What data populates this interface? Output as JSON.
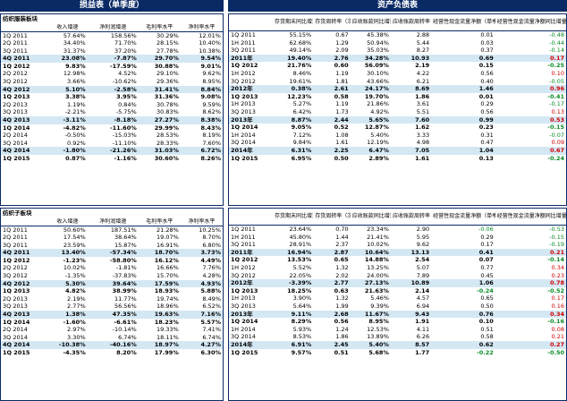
{
  "left_title": "损益表（单季度）",
  "right_title": "资产负债表",
  "q_textile": {
    "section": "纺织服装板块",
    "headers": [
      "",
      "收入增速",
      "净利润增速",
      "毛利率水平",
      "净利率水平"
    ],
    "rows": [
      [
        "1Q 2011",
        "57.64%",
        "158.56%",
        "30.29%",
        "12.01%"
      ],
      [
        "2Q 2011",
        "34.40%",
        "71.70%",
        "28.15%",
        "10.40%"
      ],
      [
        "3Q 2011",
        "31.37%",
        "37.20%",
        "27.78%",
        "10.38%"
      ],
      [
        "4Q 2011",
        "23.08%",
        "-7.87%",
        "29.70%",
        "9.54%"
      ],
      [
        "1Q 2012",
        "9.83%",
        "-17.59%",
        "30.88%",
        "9.01%"
      ],
      [
        "2Q 2012",
        "12.98%",
        "4.52%",
        "29.10%",
        "9.62%"
      ],
      [
        "3Q 2012",
        "3.66%",
        "-10.62%",
        "29.36%",
        "8.95%"
      ],
      [
        "4Q 2012",
        "5.10%",
        "-2.58%",
        "31.41%",
        "8.84%"
      ],
      [
        "1Q 2013",
        "3.38%",
        "3.95%",
        "31.36%",
        "9.08%"
      ],
      [
        "2Q 2013",
        "1.19%",
        "0.84%",
        "30.78%",
        "9.59%"
      ],
      [
        "3Q 2013",
        "-2.21%",
        "-5.75%",
        "30.83%",
        "8.62%"
      ],
      [
        "4Q 2013",
        "-3.11%",
        "-8.18%",
        "27.27%",
        "8.38%"
      ],
      [
        "1Q 2014",
        "-4.82%",
        "-11.60%",
        "29.99%",
        "8.43%"
      ],
      [
        "2Q 2014",
        "-0.50%",
        "-15.03%",
        "28.53%",
        "8.19%"
      ],
      [
        "3Q 2014",
        "0.92%",
        "-11.10%",
        "28.33%",
        "7.60%"
      ],
      [
        "4Q 2014",
        "-1.80%",
        "-21.26%",
        "31.03%",
        "6.72%"
      ],
      [
        "1Q 2015",
        "0.87%",
        "-1.16%",
        "30.60%",
        "8.26%"
      ]
    ]
  },
  "q_apparel": {
    "section": "纺织子板块",
    "headers": [
      "",
      "收入增速",
      "净利润增速",
      "毛利率水平",
      "净利率水平"
    ],
    "rows": [
      [
        "1Q 2011",
        "50.60%",
        "187.51%",
        "21.28%",
        "10.25%"
      ],
      [
        "2Q 2011",
        "17.54%",
        "38.64%",
        "19.07%",
        "8.70%"
      ],
      [
        "3Q 2011",
        "23.59%",
        "15.87%",
        "16.91%",
        "6.80%"
      ],
      [
        "4Q 2011",
        "13.40%",
        "-57.34%",
        "18.70%",
        "3.73%"
      ],
      [
        "1Q 2012",
        "-1.23%",
        "-58.80%",
        "16.12%",
        "4.49%"
      ],
      [
        "2Q 2012",
        "10.02%",
        "-1.81%",
        "16.66%",
        "7.76%"
      ],
      [
        "3Q 2012",
        "-1.35%",
        "-37.83%",
        "15.70%",
        "4.28%"
      ],
      [
        "4Q 2012",
        "5.30%",
        "39.64%",
        "17.59%",
        "4.93%"
      ],
      [
        "1Q 2013",
        "4.82%",
        "38.99%",
        "18.93%",
        "5.88%"
      ],
      [
        "2Q 2013",
        "2.19%",
        "11.77%",
        "19.74%",
        "8.49%"
      ],
      [
        "3Q 2013",
        "2.77%",
        "56.56%",
        "18.96%",
        "6.52%"
      ],
      [
        "4Q 2013",
        "1.38%",
        "47.35%",
        "19.63%",
        "7.16%"
      ],
      [
        "1Q 2014",
        "-1.60%",
        "-6.61%",
        "18.23%",
        "5.57%"
      ],
      [
        "2Q 2014",
        "2.97%",
        "-10.14%",
        "19.33%",
        "7.41%"
      ],
      [
        "3Q 2014",
        "3.30%",
        "6.74%",
        "18.11%",
        "6.74%"
      ],
      [
        "4Q 2014",
        "-10.38%",
        "-40.16%",
        "18.97%",
        "4.27%"
      ],
      [
        "1Q 2015",
        "-4.35%",
        "8.20%",
        "17.99%",
        "6.30%"
      ]
    ]
  },
  "bs_top": {
    "headers": [
      "",
      "存货期末同比增速",
      "存货周转率（次）",
      "应收账款同比增速",
      "应收账款周转率（次）",
      "经营性现金流量净额（单季，亿元）",
      "经营性现金流量净额同比增量（单季，亿元）"
    ],
    "rows": [
      [
        "1Q 2011",
        "55.15%",
        "0.67",
        "45.38%",
        "2.88",
        "0.01",
        "-0.48"
      ],
      [
        "1H 2011",
        "62.68%",
        "1.29",
        "50.94%",
        "5.44",
        "0.03",
        "-0.44"
      ],
      [
        "3Q 2011",
        "49.14%",
        "2.09",
        "35.03%",
        "8.27",
        "0.37",
        "-0.14"
      ],
      [
        "2011年",
        "19.40%",
        "2.76",
        "34.28%",
        "10.93",
        "0.69",
        "0.17"
      ],
      [
        "1Q 2012",
        "21.76%",
        "0.60",
        "56.09%",
        "2.19",
        "0.15",
        "-0.25"
      ],
      [
        "1H 2012",
        "8.46%",
        "1.19",
        "30.10%",
        "4.22",
        "0.56",
        "0.10"
      ],
      [
        "3Q 2012",
        "19.61%",
        "1.81",
        "43.66%",
        "6.21",
        "0.40",
        "-0.05"
      ],
      [
        "2012年",
        "0.38%",
        "2.61",
        "24.17%",
        "8.69",
        "1.46",
        "0.96"
      ],
      [
        "1Q 2013",
        "12.23%",
        "0.58",
        "19.70%",
        "1.86",
        "0.01",
        "-0.41"
      ],
      [
        "1H 2013",
        "5.27%",
        "1.19",
        "21.86%",
        "3.61",
        "0.29",
        "-0.17"
      ],
      [
        "3Q 2013",
        "6.42%",
        "1.73",
        "4.92%",
        "5.51",
        "0.56",
        "0.13"
      ],
      [
        "2013年",
        "8.87%",
        "2.44",
        "5.65%",
        "7.60",
        "0.99",
        "0.53"
      ],
      [
        "1Q 2014",
        "9.05%",
        "0.52",
        "12.87%",
        "1.62",
        "0.23",
        "-0.15"
      ],
      [
        "1H 2014",
        "7.12%",
        "1.08",
        "5.40%",
        "3.33",
        "0.31",
        "-0.07"
      ],
      [
        "3Q 2014",
        "9.84%",
        "1.61",
        "12.19%",
        "4.98",
        "0.47",
        "0.09"
      ],
      [
        "2014年",
        "6.31%",
        "2.25",
        "6.47%",
        "7.05",
        "1.04",
        "0.67"
      ],
      [
        "1Q 2015",
        "6.95%",
        "0.50",
        "2.89%",
        "1.61",
        "0.13",
        "-0.24"
      ]
    ]
  },
  "bs_bottom": {
    "headers": [
      "",
      "存货期末同比增速",
      "存货周转率（次）",
      "应收账款同比增速",
      "应收账款周转率（次）",
      "经营性现金流量净额（单季，亿元）",
      "经营性现金流量净额同比增量（单季，亿元）"
    ],
    "rows": [
      [
        "1Q 2011",
        "23.64%",
        "0.70",
        "23.34%",
        "2.90",
        "-0.06",
        "-0.53"
      ],
      [
        "1H 2011",
        "45.80%",
        "1.44",
        "21.41%",
        "5.95",
        "0.29",
        "-0.15"
      ],
      [
        "3Q 2011",
        "28.91%",
        "2.37",
        "10.02%",
        "9.62",
        "0.17",
        "-0.19"
      ],
      [
        "2011年",
        "16.94%",
        "2.87",
        "10.64%",
        "13.13",
        "0.41",
        "0.21"
      ],
      [
        "1Q 2012",
        "13.53%",
        "0.65",
        "14.88%",
        "2.54",
        "0.07",
        "-0.14"
      ],
      [
        "1H 2012",
        "5.52%",
        "1.32",
        "13.25%",
        "5.07",
        "0.77",
        "0.34"
      ],
      [
        "3Q 2012",
        "22.05%",
        "2.02",
        "24.00%",
        "7.89",
        "0.45",
        "0.23"
      ],
      [
        "2012年",
        "-3.39%",
        "2.77",
        "27.13%",
        "10.89",
        "1.06",
        "0.78"
      ],
      [
        "1Q 2013",
        "18.25%",
        "0.63",
        "21.63%",
        "2.14",
        "-0.24",
        "-0.52"
      ],
      [
        "1H 2013",
        "3.90%",
        "1.32",
        "5.46%",
        "4.57",
        "0.65",
        "0.17"
      ],
      [
        "3Q 2013",
        "5.64%",
        "1.99",
        "9.39%",
        "6.94",
        "0.50",
        "0.16"
      ],
      [
        "2013年",
        "9.11%",
        "2.68",
        "11.67%",
        "9.43",
        "0.76",
        "0.34"
      ],
      [
        "1Q 2014",
        "8.29%",
        "0.56",
        "8.95%",
        "1.91",
        "0.10",
        "-0.16"
      ],
      [
        "1H 2014",
        "5.93%",
        "1.24",
        "12.53%",
        "4.11",
        "0.51",
        "0.08"
      ],
      [
        "3Q 2014",
        "8.53%",
        "1.86",
        "13.89%",
        "6.26",
        "0.58",
        "0.21"
      ],
      [
        "2014年",
        "6.91%",
        "2.45",
        "5.40%",
        "8.57",
        "0.62",
        "0.27"
      ],
      [
        "1Q 2015",
        "9.57%",
        "0.51",
        "5.68%",
        "1.77",
        "-0.22",
        "-0.50"
      ]
    ]
  },
  "colors": {
    "header_bg": "#0a2a66",
    "highlight_row": "#d4e8f4",
    "positive": "#d00000",
    "negative": "#0a8a26"
  }
}
